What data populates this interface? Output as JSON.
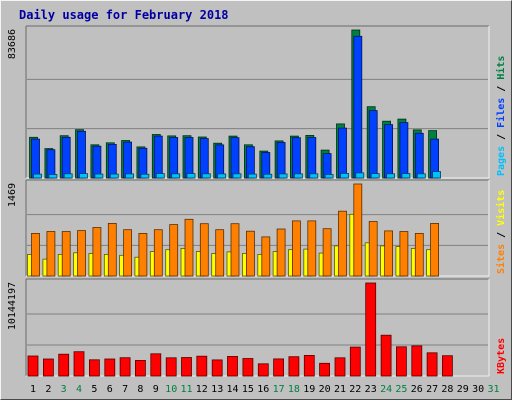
{
  "colors": {
    "frame_bg": "#c0c0c0",
    "plot_bg": "#c0c0c0",
    "title": "#0000a0",
    "hits": "#008040",
    "files": "#0040ff",
    "pages": "#00c0ff",
    "visits": "#ffff00",
    "sites": "#ff8000",
    "kbytes": "#ff0000",
    "weekend_day": "#008040",
    "weekday_day": "#000000"
  },
  "chart_data": {
    "type": "bar",
    "title": "Daily usage for February 2018",
    "categories": [
      "1",
      "2",
      "3",
      "4",
      "5",
      "6",
      "7",
      "8",
      "9",
      "10",
      "11",
      "12",
      "13",
      "14",
      "15",
      "16",
      "17",
      "18",
      "19",
      "20",
      "21",
      "22",
      "23",
      "24",
      "25",
      "26",
      "27",
      "28",
      "29",
      "30",
      "31"
    ],
    "weekend_days": [
      "3",
      "4",
      "10",
      "11",
      "17",
      "18",
      "24",
      "25",
      "31"
    ],
    "panels": [
      {
        "name": "hits-files-pages",
        "max_label": "83686",
        "ylim": [
          0,
          83686
        ],
        "legend": [
          "Pages",
          "Files",
          "Hits"
        ],
        "series": [
          {
            "name": "Hits",
            "color": "#008040",
            "values": [
              23000,
              16600,
              23900,
              27300,
              18800,
              19900,
              21200,
              17600,
              24600,
              23800,
              23900,
              23200,
              19700,
              23700,
              18800,
              15200,
              21000,
              23700,
              24100,
              15800,
              30600,
              83700,
              40300,
              32100,
              33300,
              27200,
              26800,
              null,
              null,
              null,
              null
            ]
          },
          {
            "name": "Files",
            "color": "#0040ff",
            "values": [
              22000,
              16000,
              23000,
              26400,
              18000,
              19000,
              20300,
              16800,
              23700,
              22900,
              22900,
              22300,
              18700,
              22800,
              17700,
              14400,
              20100,
              22800,
              22900,
              13800,
              28200,
              80100,
              38100,
              30200,
              31300,
              25300,
              22000,
              null,
              null,
              null,
              null
            ]
          },
          {
            "name": "Pages",
            "color": "#00c0ff",
            "values": [
              2200,
              2000,
              2400,
              2500,
              2200,
              2200,
              2300,
              2100,
              2500,
              2400,
              2500,
              2400,
              2300,
              2400,
              2200,
              2100,
              2300,
              2400,
              2400,
              2000,
              2600,
              2900,
              2500,
              2400,
              2500,
              2400,
              3600,
              null,
              null,
              null,
              null
            ]
          }
        ]
      },
      {
        "name": "sites-visits",
        "max_label": "1469",
        "ylim": [
          0,
          1469
        ],
        "legend": [
          "Sites",
          "Visits"
        ],
        "series": [
          {
            "name": "Visits",
            "color": "#ffff00",
            "values": [
              345,
              270,
              345,
              370,
              360,
              345,
              330,
              300,
              390,
              420,
              440,
              390,
              360,
              385,
              360,
              345,
              390,
              420,
              430,
              365,
              480,
              985,
              530,
              480,
              470,
              440,
              420,
              null,
              null,
              null,
              null
            ]
          },
          {
            "name": "Sites",
            "color": "#ff8000",
            "values": [
              680,
              710,
              710,
              725,
              775,
              840,
              740,
              680,
              740,
              820,
              905,
              835,
              740,
              835,
              715,
              625,
              750,
              880,
              880,
              755,
              1035,
              1469,
              870,
              720,
              710,
              680,
              840,
              null,
              null,
              null,
              null
            ]
          }
        ]
      },
      {
        "name": "kbytes",
        "max_label": "10144197",
        "ylim": [
          0,
          10144197
        ],
        "legend": [
          "KBytes"
        ],
        "series": [
          {
            "name": "KBytes",
            "color": "#ff0000",
            "values": [
              2180000,
              1850000,
              2380000,
              2650000,
              1770000,
              1850000,
              2000000,
              1700000,
              2420000,
              1980000,
              2020000,
              2160000,
              1760000,
              2140000,
              1910000,
              1330000,
              1870000,
              2110000,
              2250000,
              1390000,
              1990000,
              3150000,
              10144197,
              4450000,
              3190000,
              3280000,
              2530000,
              2210000,
              null,
              null,
              null
            ]
          }
        ]
      }
    ]
  }
}
